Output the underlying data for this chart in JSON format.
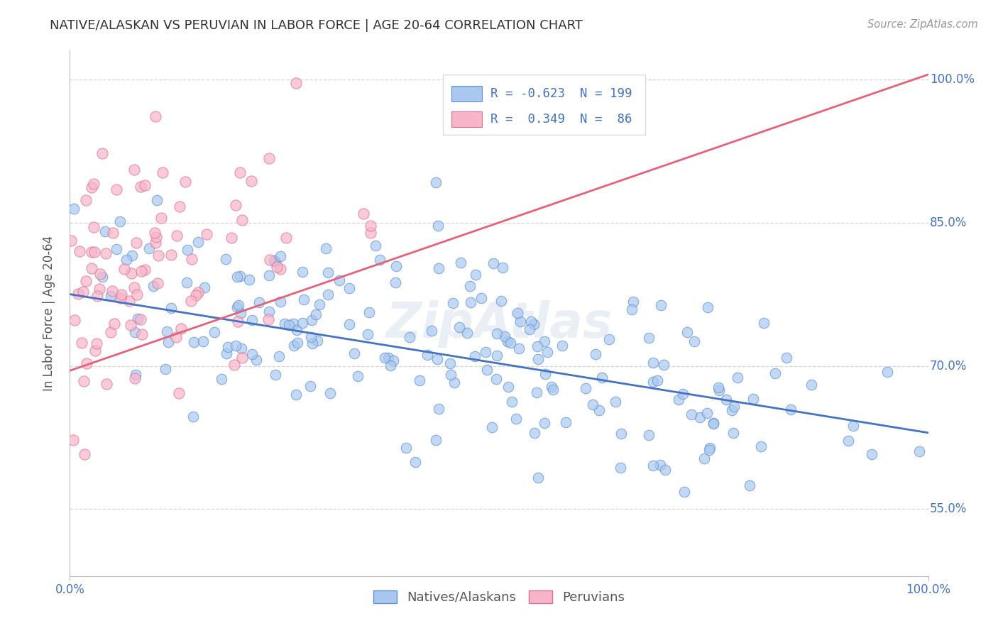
{
  "title": "NATIVE/ALASKAN VS PERUVIAN IN LABOR FORCE | AGE 20-64 CORRELATION CHART",
  "source": "Source: ZipAtlas.com",
  "ylabel": "In Labor Force | Age 20-64",
  "xlim": [
    0.0,
    1.0
  ],
  "ylim": [
    0.48,
    1.03
  ],
  "x_ticks": [
    0.0,
    1.0
  ],
  "x_tick_labels": [
    "0.0%",
    "100.0%"
  ],
  "y_ticks": [
    0.55,
    0.7,
    0.85,
    1.0
  ],
  "y_tick_labels": [
    "55.0%",
    "70.0%",
    "85.0%",
    "100.0%"
  ],
  "blue_R": -0.623,
  "blue_N": 199,
  "pink_R": 0.349,
  "pink_N": 86,
  "blue_line_color": "#4472C4",
  "pink_line_color": "#E8607A",
  "blue_scatter_fill": "#A8C8F0",
  "blue_scatter_edge": "#6090D0",
  "pink_scatter_fill": "#F8B4C8",
  "pink_scatter_edge": "#E07090",
  "blue_label": "Natives/Alaskans",
  "pink_label": "Peruvians",
  "watermark": "ZipAtlas",
  "blue_trend_y_start": 0.775,
  "blue_trend_y_end": 0.63,
  "pink_trend_y_start": 0.695,
  "pink_trend_y_end": 1.005,
  "background_color": "#FFFFFF",
  "grid_color": "#CCCCCC",
  "title_color": "#333333",
  "axis_label_color": "#555555",
  "tick_label_color": "#4472C4",
  "source_color": "#999999",
  "legend_box_color": "#DDDDDD"
}
